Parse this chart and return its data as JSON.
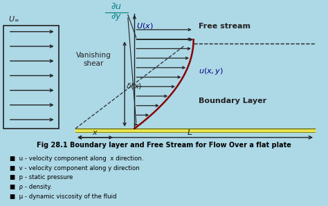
{
  "bg_color": "#add8e6",
  "title": "Fig 28.1 Boundary layer and Free Stream for Flow Over a flat plate",
  "title_fontsize": 7.0,
  "bullets": [
    "u - velocity component along  x direction.",
    "v - velocity component along y direction",
    "p - static pressure",
    "ρ - density.",
    "μ - dynamic viscosity of the fluid"
  ],
  "bullet_fontsize": 6.2,
  "plate_color": "#e8e850",
  "plate_color2": "#c8c820",
  "boundary_color": "#8b0000",
  "arrow_color": "#222222",
  "text_color": "#222222",
  "teal_color": "#008080",
  "blue_label_color": "#000080"
}
